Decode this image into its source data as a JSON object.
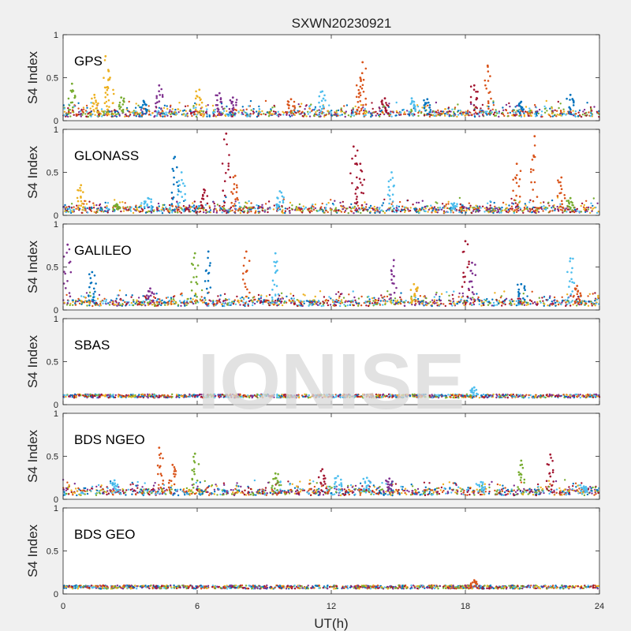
{
  "figure": {
    "title": "SXWN20230921",
    "xlabel": "UT(h)",
    "ylabel": "S4 Index",
    "watermark": "IONISE"
  },
  "chart_data": {
    "type": "scatter",
    "xlim": [
      0,
      24
    ],
    "ylim": [
      0,
      1
    ],
    "xticks": [
      0,
      6,
      12,
      18,
      24
    ],
    "yticks": [
      0,
      0.5,
      1
    ],
    "ytick_labels": [
      "0",
      "0.5",
      "1"
    ],
    "grid": false,
    "series_colors": [
      "#0072BD",
      "#D95319",
      "#EDB120",
      "#7E2F8E",
      "#77AC30",
      "#4DBEEE",
      "#A2142F"
    ],
    "panels": [
      {
        "name": "GPS",
        "baseline": 0.08,
        "peaks": [
          {
            "x": 0.4,
            "y": 0.43,
            "c": 4
          },
          {
            "x": 1.4,
            "y": 0.3,
            "c": 2
          },
          {
            "x": 1.9,
            "y": 0.75,
            "c": 2
          },
          {
            "x": 2.1,
            "y": 0.5,
            "c": 2
          },
          {
            "x": 2.6,
            "y": 0.27,
            "c": 4
          },
          {
            "x": 3.6,
            "y": 0.23,
            "c": 0
          },
          {
            "x": 4.3,
            "y": 0.41,
            "c": 3
          },
          {
            "x": 6.1,
            "y": 0.36,
            "c": 2
          },
          {
            "x": 7.0,
            "y": 0.32,
            "c": 3
          },
          {
            "x": 7.6,
            "y": 0.27,
            "c": 3
          },
          {
            "x": 10.2,
            "y": 0.25,
            "c": 1
          },
          {
            "x": 11.6,
            "y": 0.34,
            "c": 5
          },
          {
            "x": 13.4,
            "y": 0.68,
            "c": 1
          },
          {
            "x": 13.3,
            "y": 0.5,
            "c": 1
          },
          {
            "x": 14.4,
            "y": 0.26,
            "c": 6
          },
          {
            "x": 15.6,
            "y": 0.26,
            "c": 5
          },
          {
            "x": 16.3,
            "y": 0.25,
            "c": 0
          },
          {
            "x": 18.4,
            "y": 0.41,
            "c": 6
          },
          {
            "x": 19.0,
            "y": 0.64,
            "c": 1
          },
          {
            "x": 20.5,
            "y": 0.22,
            "c": 0
          },
          {
            "x": 22.7,
            "y": 0.3,
            "c": 0
          }
        ]
      },
      {
        "name": "GLONASS",
        "baseline": 0.06,
        "peaks": [
          {
            "x": 0.8,
            "y": 0.35,
            "c": 2
          },
          {
            "x": 2.4,
            "y": 0.13,
            "c": 4
          },
          {
            "x": 3.8,
            "y": 0.2,
            "c": 5
          },
          {
            "x": 5.0,
            "y": 0.68,
            "c": 0
          },
          {
            "x": 5.3,
            "y": 0.5,
            "c": 5
          },
          {
            "x": 6.3,
            "y": 0.3,
            "c": 6
          },
          {
            "x": 7.3,
            "y": 0.95,
            "c": 6
          },
          {
            "x": 7.7,
            "y": 0.46,
            "c": 1
          },
          {
            "x": 9.7,
            "y": 0.28,
            "c": 5
          },
          {
            "x": 13.0,
            "y": 0.8,
            "c": 6
          },
          {
            "x": 13.3,
            "y": 0.6,
            "c": 6
          },
          {
            "x": 14.7,
            "y": 0.5,
            "c": 5
          },
          {
            "x": 17.5,
            "y": 0.14,
            "c": 5
          },
          {
            "x": 20.3,
            "y": 0.6,
            "c": 1
          },
          {
            "x": 21.1,
            "y": 0.92,
            "c": 1
          },
          {
            "x": 22.3,
            "y": 0.44,
            "c": 1
          },
          {
            "x": 22.7,
            "y": 0.2,
            "c": 4
          }
        ]
      },
      {
        "name": "GALILEO",
        "baseline": 0.08,
        "peaks": [
          {
            "x": 0.2,
            "y": 0.76,
            "c": 3
          },
          {
            "x": 1.3,
            "y": 0.44,
            "c": 0
          },
          {
            "x": 3.9,
            "y": 0.25,
            "c": 3
          },
          {
            "x": 5.9,
            "y": 0.66,
            "c": 4
          },
          {
            "x": 6.5,
            "y": 0.68,
            "c": 0
          },
          {
            "x": 8.2,
            "y": 0.68,
            "c": 1
          },
          {
            "x": 9.5,
            "y": 0.66,
            "c": 5
          },
          {
            "x": 14.8,
            "y": 0.58,
            "c": 3
          },
          {
            "x": 15.7,
            "y": 0.3,
            "c": 2
          },
          {
            "x": 18.0,
            "y": 0.8,
            "c": 6
          },
          {
            "x": 18.3,
            "y": 0.55,
            "c": 3
          },
          {
            "x": 20.5,
            "y": 0.3,
            "c": 0
          },
          {
            "x": 22.7,
            "y": 0.6,
            "c": 5
          },
          {
            "x": 23.0,
            "y": 0.28,
            "c": 1
          }
        ]
      },
      {
        "name": "SBAS",
        "baseline": 0.1,
        "peaks": [
          {
            "x": 18.4,
            "y": 0.2,
            "c": 5
          }
        ]
      },
      {
        "name": "BDS NGEO",
        "baseline": 0.08,
        "peaks": [
          {
            "x": 2.3,
            "y": 0.22,
            "c": 5
          },
          {
            "x": 4.3,
            "y": 0.6,
            "c": 1
          },
          {
            "x": 4.9,
            "y": 0.4,
            "c": 1
          },
          {
            "x": 5.9,
            "y": 0.53,
            "c": 4
          },
          {
            "x": 9.5,
            "y": 0.3,
            "c": 4
          },
          {
            "x": 11.6,
            "y": 0.35,
            "c": 6
          },
          {
            "x": 12.3,
            "y": 0.27,
            "c": 5
          },
          {
            "x": 13.6,
            "y": 0.25,
            "c": 5
          },
          {
            "x": 14.6,
            "y": 0.24,
            "c": 3
          },
          {
            "x": 18.7,
            "y": 0.2,
            "c": 5
          },
          {
            "x": 20.5,
            "y": 0.45,
            "c": 4
          },
          {
            "x": 21.8,
            "y": 0.52,
            "c": 6
          },
          {
            "x": 23.3,
            "y": 0.15,
            "c": 5
          }
        ]
      },
      {
        "name": "BDS GEO",
        "baseline": 0.08,
        "peaks": [
          {
            "x": 18.4,
            "y": 0.16,
            "c": 1
          }
        ]
      }
    ]
  }
}
